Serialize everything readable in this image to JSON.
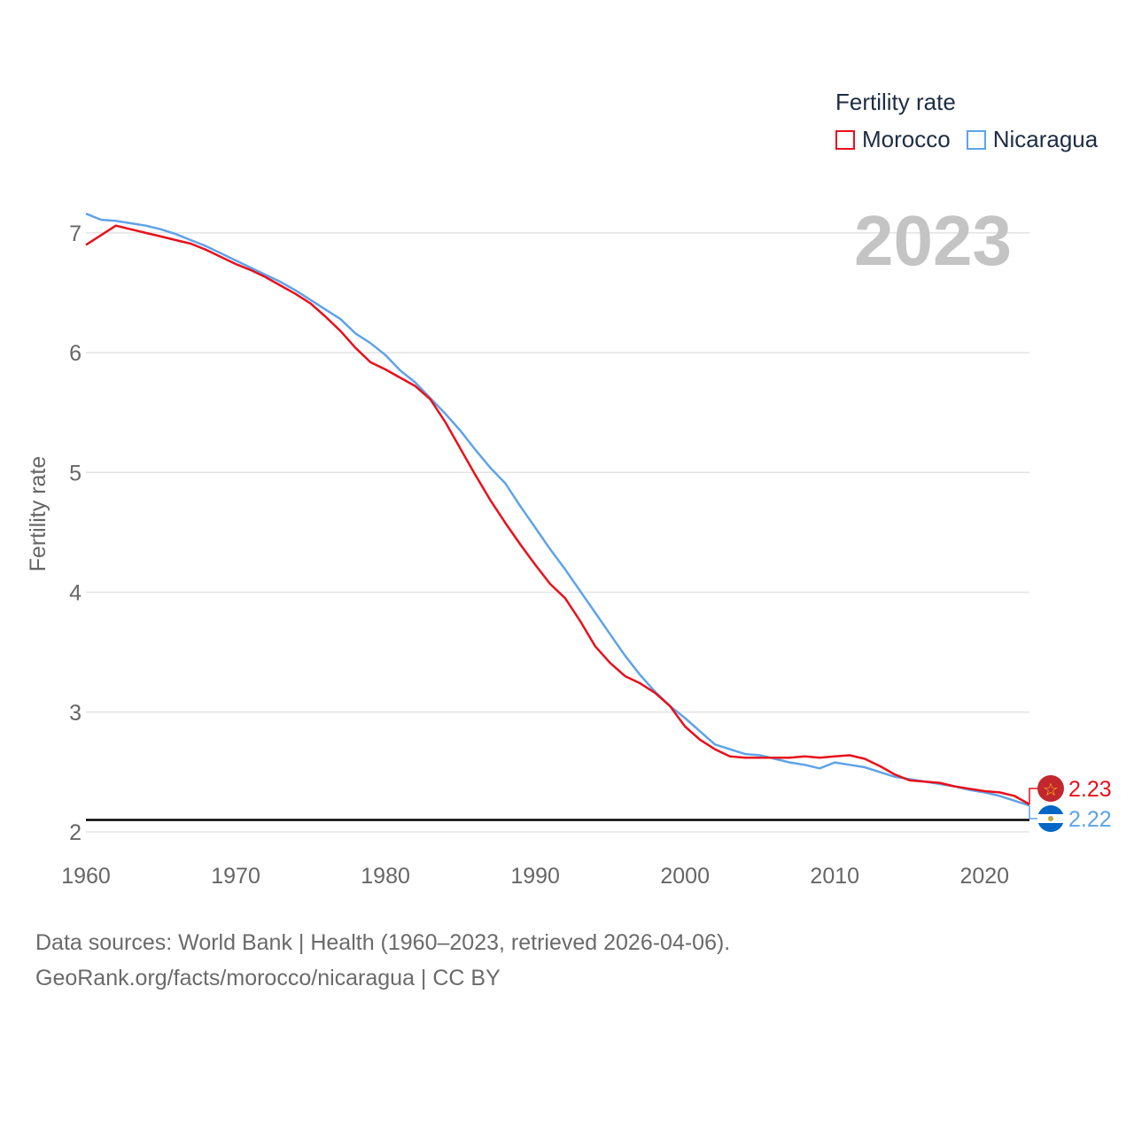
{
  "legend": {
    "title": "Fertility rate",
    "items": [
      {
        "name": "Morocco",
        "color": "#e8101b"
      },
      {
        "name": "Nicaragua",
        "color": "#5ea3e8"
      }
    ]
  },
  "current_year": "2023",
  "footer": {
    "line1": "Data sources: World Bank | Health (1960–2023, retrieved 2026-04-06).",
    "line2": "GeoRank.org/facts/morocco/nicaragua | CC BY"
  },
  "chart_data": {
    "type": "line",
    "title": "Fertility rate",
    "xlabel": "",
    "ylabel": "Fertility rate",
    "xlim": [
      1960,
      2023
    ],
    "ylim": [
      2,
      7.45
    ],
    "x_ticks": [
      1960,
      1970,
      1980,
      1990,
      2000,
      2010,
      2020
    ],
    "y_ticks": [
      2,
      3,
      4,
      5,
      6,
      7
    ],
    "reference_line": 2.1,
    "grid": true,
    "legend_position": "top-right",
    "x": [
      1960,
      1961,
      1962,
      1963,
      1964,
      1965,
      1966,
      1967,
      1968,
      1969,
      1970,
      1971,
      1972,
      1973,
      1974,
      1975,
      1976,
      1977,
      1978,
      1979,
      1980,
      1981,
      1982,
      1983,
      1984,
      1985,
      1986,
      1987,
      1988,
      1989,
      1990,
      1991,
      1992,
      1993,
      1994,
      1995,
      1996,
      1997,
      1998,
      1999,
      2000,
      2001,
      2002,
      2003,
      2004,
      2005,
      2006,
      2007,
      2008,
      2009,
      2010,
      2011,
      2012,
      2013,
      2014,
      2015,
      2016,
      2017,
      2018,
      2019,
      2020,
      2021,
      2022,
      2023
    ],
    "series": [
      {
        "name": "Morocco",
        "color": "#e8101b",
        "end_label": "2.23",
        "values": [
          6.9,
          6.98,
          7.06,
          7.03,
          7.0,
          6.97,
          6.94,
          6.91,
          6.86,
          6.8,
          6.74,
          6.69,
          6.63,
          6.56,
          6.49,
          6.41,
          6.3,
          6.18,
          6.04,
          5.92,
          5.86,
          5.79,
          5.72,
          5.61,
          5.42,
          5.2,
          4.98,
          4.77,
          4.58,
          4.4,
          4.23,
          4.07,
          3.95,
          3.76,
          3.55,
          3.41,
          3.3,
          3.24,
          3.16,
          3.05,
          2.88,
          2.77,
          2.69,
          2.63,
          2.62,
          2.62,
          2.62,
          2.62,
          2.63,
          2.62,
          2.63,
          2.64,
          2.61,
          2.55,
          2.48,
          2.43,
          2.42,
          2.41,
          2.38,
          2.36,
          2.34,
          2.33,
          2.3,
          2.23
        ]
      },
      {
        "name": "Nicaragua",
        "color": "#5ea3e8",
        "end_label": "2.22",
        "values": [
          7.16,
          7.11,
          7.1,
          7.08,
          7.06,
          7.03,
          6.99,
          6.94,
          6.89,
          6.83,
          6.77,
          6.71,
          6.65,
          6.59,
          6.52,
          6.44,
          6.36,
          6.28,
          6.16,
          6.08,
          5.98,
          5.85,
          5.75,
          5.62,
          5.49,
          5.35,
          5.19,
          5.04,
          4.91,
          4.72,
          4.54,
          4.36,
          4.19,
          4.01,
          3.83,
          3.65,
          3.47,
          3.31,
          3.17,
          3.05,
          2.95,
          2.84,
          2.73,
          2.69,
          2.65,
          2.64,
          2.61,
          2.58,
          2.56,
          2.53,
          2.58,
          2.56,
          2.54,
          2.5,
          2.46,
          2.44,
          2.42,
          2.4,
          2.38,
          2.35,
          2.33,
          2.3,
          2.26,
          2.22
        ]
      }
    ]
  }
}
